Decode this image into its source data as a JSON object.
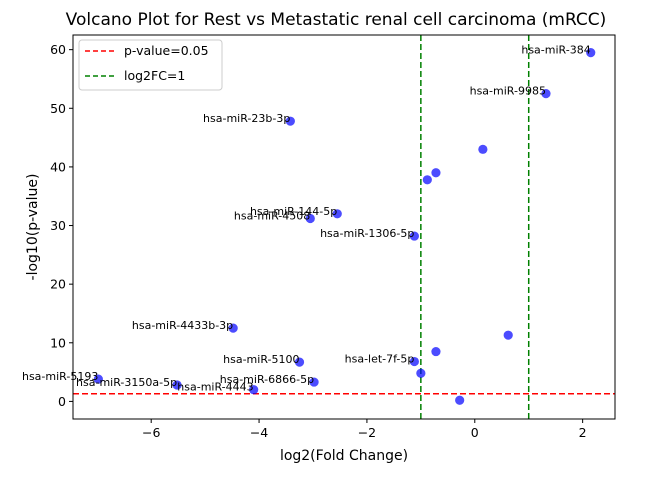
{
  "chart_data": {
    "type": "scatter",
    "title": "Volcano Plot for Rest vs Metastatic renal cell carcinoma (mRCC)",
    "xlabel": "log2(Fold Change)",
    "ylabel": "-log10(p-value)",
    "xlim": [
      -7.45,
      2.6
    ],
    "ylim": [
      -3,
      62.5
    ],
    "xticks": [
      -6,
      -4,
      -2,
      0,
      2
    ],
    "xtick_labels": [
      "−6",
      "−4",
      "−2",
      "0",
      "2"
    ],
    "yticks": [
      0,
      10,
      20,
      30,
      40,
      50,
      60
    ],
    "ytick_labels": [
      "0",
      "10",
      "20",
      "30",
      "40",
      "50",
      "60"
    ],
    "grid": false,
    "legend_position": "upper-left",
    "colors": {
      "points": "#0000ff",
      "threshold_p": "#ff0000",
      "threshold_fc": "#008000"
    },
    "thresholds": [
      {
        "orientation": "horizontal",
        "value": 1.3,
        "label": "p-value=0.05",
        "color": "#ff0000"
      },
      {
        "orientation": "vertical",
        "value": -1,
        "label": "log2FC=1",
        "color": "#008000"
      },
      {
        "orientation": "vertical",
        "value": 1,
        "label": "",
        "color": "#008000"
      }
    ],
    "points": [
      {
        "x": 2.15,
        "y": 59.5,
        "label": "hsa-miR-384"
      },
      {
        "x": 1.32,
        "y": 52.5,
        "label": "hsa-miR-9985"
      },
      {
        "x": -3.42,
        "y": 47.8,
        "label": "hsa-miR-23b-3p"
      },
      {
        "x": 0.15,
        "y": 43.0,
        "label": ""
      },
      {
        "x": -0.72,
        "y": 39.0,
        "label": ""
      },
      {
        "x": -0.88,
        "y": 37.8,
        "label": ""
      },
      {
        "x": -2.55,
        "y": 32.0,
        "label": "hsa-miR-144-5p"
      },
      {
        "x": -3.05,
        "y": 31.2,
        "label": "hsa-miR-4508"
      },
      {
        "x": -1.12,
        "y": 28.2,
        "label": "hsa-miR-1306-5p"
      },
      {
        "x": -4.48,
        "y": 12.5,
        "label": "hsa-miR-4433b-3p"
      },
      {
        "x": 0.62,
        "y": 11.3,
        "label": ""
      },
      {
        "x": -0.72,
        "y": 8.5,
        "label": ""
      },
      {
        "x": -3.25,
        "y": 6.7,
        "label": "hsa-miR-5100"
      },
      {
        "x": -1.12,
        "y": 6.8,
        "label": "hsa-let-7f-5p"
      },
      {
        "x": -1.0,
        "y": 4.8,
        "label": ""
      },
      {
        "x": -6.98,
        "y": 3.8,
        "label": "hsa-miR-5193"
      },
      {
        "x": -5.52,
        "y": 2.8,
        "label": "hsa-miR-3150a-5p"
      },
      {
        "x": -2.98,
        "y": 3.3,
        "label": "hsa-miR-6866-5p"
      },
      {
        "x": -4.1,
        "y": 2.0,
        "label": "hsa-miR-4443"
      },
      {
        "x": -0.28,
        "y": 0.2,
        "label": ""
      }
    ]
  }
}
